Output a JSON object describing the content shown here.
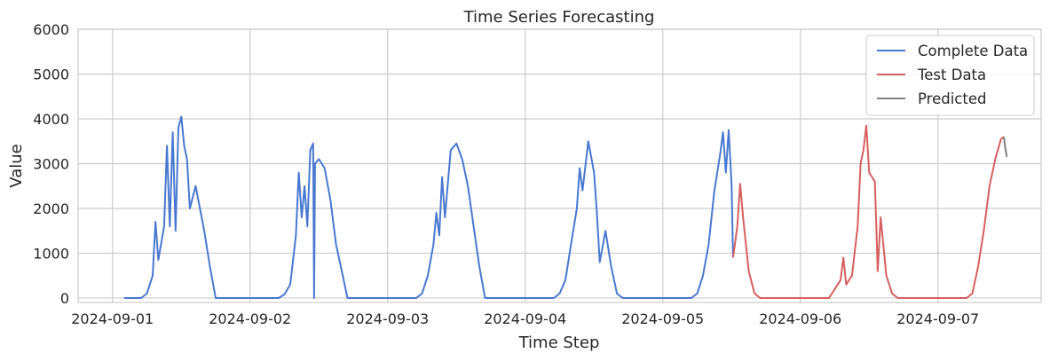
{
  "chart_data": {
    "type": "line",
    "title": "Time Series Forecasting",
    "xlabel": "Time Step",
    "ylabel": "Value",
    "ylim": [
      -100,
      6000
    ],
    "y_ticks": [
      0,
      1000,
      2000,
      3000,
      4000,
      5000,
      6000
    ],
    "xlim": [
      "2024-08-31 18:00",
      "2024-09-07 18:00"
    ],
    "x_ticks": [
      "2024-09-01",
      "2024-09-02",
      "2024-09-03",
      "2024-09-04",
      "2024-09-05",
      "2024-09-06",
      "2024-09-07"
    ],
    "grid": true,
    "legend": {
      "position": "top-right",
      "entries": [
        "Complete Data",
        "Test Data",
        "Predicted"
      ]
    },
    "series": [
      {
        "name": "Complete Data",
        "color": "#4878d0",
        "points": [
          [
            "2024-09-01 02:00",
            0
          ],
          [
            "2024-09-01 05:00",
            0
          ],
          [
            "2024-09-01 06:00",
            100
          ],
          [
            "2024-09-01 07:00",
            500
          ],
          [
            "2024-09-01 07:30",
            1700
          ],
          [
            "2024-09-01 08:00",
            850
          ],
          [
            "2024-09-01 09:00",
            1600
          ],
          [
            "2024-09-01 09:30",
            3400
          ],
          [
            "2024-09-01 10:00",
            1600
          ],
          [
            "2024-09-01 10:30",
            3700
          ],
          [
            "2024-09-01 11:00",
            1500
          ],
          [
            "2024-09-01 11:30",
            3800
          ],
          [
            "2024-09-01 12:00",
            4050
          ],
          [
            "2024-09-01 12:30",
            3400
          ],
          [
            "2024-09-01 13:00",
            3100
          ],
          [
            "2024-09-01 13:30",
            2000
          ],
          [
            "2024-09-01 14:30",
            2500
          ],
          [
            "2024-09-01 16:00",
            1500
          ],
          [
            "2024-09-01 17:00",
            700
          ],
          [
            "2024-09-01 18:00",
            0
          ],
          [
            "2024-09-02 05:00",
            0
          ],
          [
            "2024-09-02 06:00",
            80
          ],
          [
            "2024-09-02 07:00",
            300
          ],
          [
            "2024-09-02 08:00",
            1400
          ],
          [
            "2024-09-02 08:30",
            2800
          ],
          [
            "2024-09-02 09:00",
            1800
          ],
          [
            "2024-09-02 09:30",
            2500
          ],
          [
            "2024-09-02 10:00",
            1600
          ],
          [
            "2024-09-02 10:30",
            3300
          ],
          [
            "2024-09-02 11:00",
            3450
          ],
          [
            "2024-09-02 11:10",
            0
          ],
          [
            "2024-09-02 11:20",
            3000
          ],
          [
            "2024-09-02 12:00",
            3100
          ],
          [
            "2024-09-02 13:00",
            2900
          ],
          [
            "2024-09-02 14:00",
            2200
          ],
          [
            "2024-09-02 15:00",
            1200
          ],
          [
            "2024-09-02 16:00",
            600
          ],
          [
            "2024-09-02 17:00",
            0
          ],
          [
            "2024-09-03 05:00",
            0
          ],
          [
            "2024-09-03 06:00",
            100
          ],
          [
            "2024-09-03 07:00",
            500
          ],
          [
            "2024-09-03 08:00",
            1200
          ],
          [
            "2024-09-03 08:30",
            1900
          ],
          [
            "2024-09-03 09:00",
            1400
          ],
          [
            "2024-09-03 09:30",
            2700
          ],
          [
            "2024-09-03 10:00",
            1800
          ],
          [
            "2024-09-03 11:00",
            3300
          ],
          [
            "2024-09-03 12:00",
            3450
          ],
          [
            "2024-09-03 13:00",
            3100
          ],
          [
            "2024-09-03 14:00",
            2500
          ],
          [
            "2024-09-03 15:00",
            1600
          ],
          [
            "2024-09-03 16:00",
            700
          ],
          [
            "2024-09-03 17:00",
            0
          ],
          [
            "2024-09-04 05:00",
            0
          ],
          [
            "2024-09-04 06:00",
            100
          ],
          [
            "2024-09-04 07:00",
            400
          ],
          [
            "2024-09-04 08:00",
            1200
          ],
          [
            "2024-09-04 09:00",
            2000
          ],
          [
            "2024-09-04 09:30",
            2900
          ],
          [
            "2024-09-04 10:00",
            2400
          ],
          [
            "2024-09-04 11:00",
            3500
          ],
          [
            "2024-09-04 12:00",
            2800
          ],
          [
            "2024-09-04 12:30",
            1900
          ],
          [
            "2024-09-04 13:00",
            800
          ],
          [
            "2024-09-04 14:00",
            1500
          ],
          [
            "2024-09-04 15:00",
            700
          ],
          [
            "2024-09-04 16:00",
            100
          ],
          [
            "2024-09-04 17:00",
            0
          ],
          [
            "2024-09-05 05:00",
            0
          ],
          [
            "2024-09-05 06:00",
            100
          ],
          [
            "2024-09-05 07:00",
            500
          ],
          [
            "2024-09-05 08:00",
            1200
          ],
          [
            "2024-09-05 09:00",
            2400
          ],
          [
            "2024-09-05 10:00",
            3200
          ],
          [
            "2024-09-05 10:30",
            3700
          ],
          [
            "2024-09-05 11:00",
            2800
          ],
          [
            "2024-09-05 11:30",
            3750
          ],
          [
            "2024-09-05 12:00",
            2500
          ],
          [
            "2024-09-05 12:15",
            900
          ]
        ]
      },
      {
        "name": "Test Data",
        "color": "#d65f5f",
        "points": [
          [
            "2024-09-05 12:15",
            900
          ],
          [
            "2024-09-05 13:00",
            1600
          ],
          [
            "2024-09-05 13:30",
            2550
          ],
          [
            "2024-09-05 14:00",
            1800
          ],
          [
            "2024-09-05 15:00",
            600
          ],
          [
            "2024-09-05 16:00",
            100
          ],
          [
            "2024-09-05 17:00",
            0
          ],
          [
            "2024-09-06 05:00",
            0
          ],
          [
            "2024-09-06 06:00",
            200
          ],
          [
            "2024-09-06 07:00",
            400
          ],
          [
            "2024-09-06 07:30",
            900
          ],
          [
            "2024-09-06 08:00",
            300
          ],
          [
            "2024-09-06 09:00",
            500
          ],
          [
            "2024-09-06 10:00",
            1600
          ],
          [
            "2024-09-06 10:30",
            3000
          ],
          [
            "2024-09-06 11:00",
            3300
          ],
          [
            "2024-09-06 11:30",
            3850
          ],
          [
            "2024-09-06 12:00",
            2800
          ],
          [
            "2024-09-06 13:00",
            2600
          ],
          [
            "2024-09-06 13:30",
            600
          ],
          [
            "2024-09-06 14:00",
            1800
          ],
          [
            "2024-09-06 15:00",
            500
          ],
          [
            "2024-09-06 16:00",
            100
          ],
          [
            "2024-09-06 17:00",
            0
          ],
          [
            "2024-09-07 05:00",
            0
          ],
          [
            "2024-09-07 06:00",
            100
          ],
          [
            "2024-09-07 07:00",
            700
          ],
          [
            "2024-09-07 08:00",
            1500
          ],
          [
            "2024-09-07 09:00",
            2500
          ],
          [
            "2024-09-07 10:00",
            3100
          ],
          [
            "2024-09-07 11:00",
            3550
          ],
          [
            "2024-09-07 11:30",
            3600
          ]
        ]
      },
      {
        "name": "Predicted",
        "color": "#7f7f7f",
        "points": [
          [
            "2024-09-07 11:30",
            3600
          ],
          [
            "2024-09-07 11:45",
            3350
          ],
          [
            "2024-09-07 12:00",
            3150
          ]
        ]
      }
    ]
  }
}
